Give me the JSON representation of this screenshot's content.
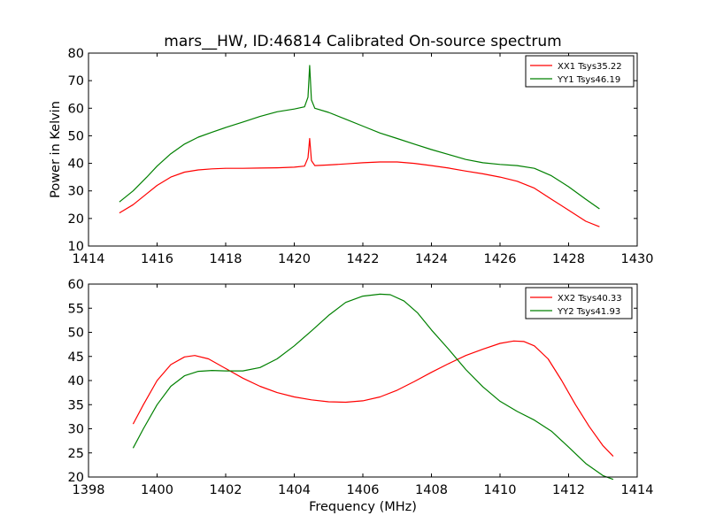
{
  "title": "mars__HW, ID:46814 Calibrated On-source spectrum",
  "chart_data": [
    {
      "type": "line",
      "title": "mars__HW, ID:46814 Calibrated On-source spectrum",
      "xlabel": "",
      "ylabel": "Power in Kelvin",
      "xlim": [
        1414,
        1430
      ],
      "ylim": [
        10,
        80
      ],
      "xticks": [
        1414,
        1416,
        1418,
        1420,
        1422,
        1424,
        1426,
        1428,
        1430
      ],
      "yticks": [
        10,
        20,
        30,
        40,
        50,
        60,
        70,
        80
      ],
      "grid": false,
      "legend_position": "top-right",
      "series": [
        {
          "name": "XX1 Tsys35.22",
          "color": "#ff0000",
          "x": [
            1414.9,
            1415.3,
            1415.7,
            1416.0,
            1416.4,
            1416.8,
            1417.2,
            1417.6,
            1418.0,
            1418.5,
            1419.0,
            1419.5,
            1420.0,
            1420.3,
            1420.4,
            1420.45,
            1420.5,
            1420.6,
            1421.0,
            1421.5,
            1422.0,
            1422.5,
            1423.0,
            1423.5,
            1424.0,
            1424.5,
            1425.0,
            1425.5,
            1426.0,
            1426.5,
            1427.0,
            1427.5,
            1428.0,
            1428.5,
            1428.9
          ],
          "y": [
            22,
            25,
            29,
            32,
            35,
            36.8,
            37.6,
            38,
            38.2,
            38.2,
            38.3,
            38.4,
            38.6,
            39,
            42,
            49,
            41,
            39.2,
            39.4,
            39.8,
            40.2,
            40.5,
            40.5,
            40,
            39.2,
            38.3,
            37.2,
            36.2,
            35,
            33.5,
            31,
            27,
            23,
            19,
            17
          ]
        },
        {
          "name": "YY1 Tsys46.19",
          "color": "#008000",
          "x": [
            1414.9,
            1415.3,
            1415.7,
            1416.0,
            1416.4,
            1416.8,
            1417.2,
            1417.6,
            1418.0,
            1418.5,
            1419.0,
            1419.5,
            1420.0,
            1420.3,
            1420.4,
            1420.45,
            1420.5,
            1420.6,
            1421.0,
            1421.5,
            1422.0,
            1422.5,
            1423.0,
            1423.5,
            1424.0,
            1424.5,
            1425.0,
            1425.5,
            1426.0,
            1426.5,
            1427.0,
            1427.5,
            1428.0,
            1428.5,
            1428.9
          ],
          "y": [
            26,
            30,
            35,
            39,
            43.5,
            47,
            49.5,
            51.3,
            53,
            55,
            57,
            58.7,
            59.7,
            60.5,
            64,
            75.5,
            63,
            60,
            58.5,
            56,
            53.5,
            51,
            49,
            47,
            45,
            43.2,
            41.4,
            40.2,
            39.6,
            39.2,
            38.2,
            35.5,
            31.5,
            27,
            23.5
          ]
        }
      ]
    },
    {
      "type": "line",
      "title": "",
      "xlabel": "Frequency (MHz)",
      "ylabel": "",
      "xlim": [
        1398,
        1414
      ],
      "ylim": [
        20,
        60
      ],
      "xticks": [
        1398,
        1400,
        1402,
        1404,
        1406,
        1408,
        1410,
        1412,
        1414
      ],
      "yticks": [
        20,
        25,
        30,
        35,
        40,
        45,
        50,
        55,
        60
      ],
      "grid": false,
      "legend_position": "top-right",
      "series": [
        {
          "name": "XX2 Tsys40.33",
          "color": "#ff0000",
          "x": [
            1399.3,
            1399.6,
            1400.0,
            1400.4,
            1400.8,
            1401.1,
            1401.5,
            1402.0,
            1402.5,
            1403.0,
            1403.5,
            1404.0,
            1404.5,
            1405.0,
            1405.5,
            1406.0,
            1406.5,
            1407.0,
            1407.5,
            1408.0,
            1408.5,
            1409.0,
            1409.5,
            1410.0,
            1410.4,
            1410.7,
            1411.0,
            1411.4,
            1411.8,
            1412.2,
            1412.6,
            1413.0,
            1413.3
          ],
          "y": [
            31,
            35,
            40,
            43.3,
            44.9,
            45.2,
            44.5,
            42.5,
            40.5,
            38.8,
            37.5,
            36.6,
            36,
            35.6,
            35.5,
            35.8,
            36.6,
            38,
            39.8,
            41.7,
            43.5,
            45.2,
            46.5,
            47.7,
            48.2,
            48.1,
            47.2,
            44.5,
            40,
            35,
            30.5,
            26.5,
            24.3
          ]
        },
        {
          "name": "YY2 Tsys41.93",
          "color": "#008000",
          "x": [
            1399.3,
            1399.6,
            1400.0,
            1400.4,
            1400.8,
            1401.2,
            1401.6,
            1402.0,
            1402.5,
            1403.0,
            1403.5,
            1404.0,
            1404.5,
            1405.0,
            1405.5,
            1406.0,
            1406.5,
            1406.8,
            1407.2,
            1407.6,
            1408.0,
            1408.5,
            1409.0,
            1409.5,
            1410.0,
            1410.5,
            1411.0,
            1411.5,
            1412.0,
            1412.5,
            1413.0,
            1413.3
          ],
          "y": [
            26,
            30,
            35,
            38.8,
            41,
            41.9,
            42.1,
            42,
            42,
            42.7,
            44.5,
            47.2,
            50.3,
            53.5,
            56.2,
            57.5,
            57.9,
            57.8,
            56.5,
            54,
            50.5,
            46.5,
            42.3,
            38.7,
            35.7,
            33.6,
            31.8,
            29.5,
            26.2,
            22.8,
            20.3,
            19.5
          ]
        }
      ]
    }
  ]
}
